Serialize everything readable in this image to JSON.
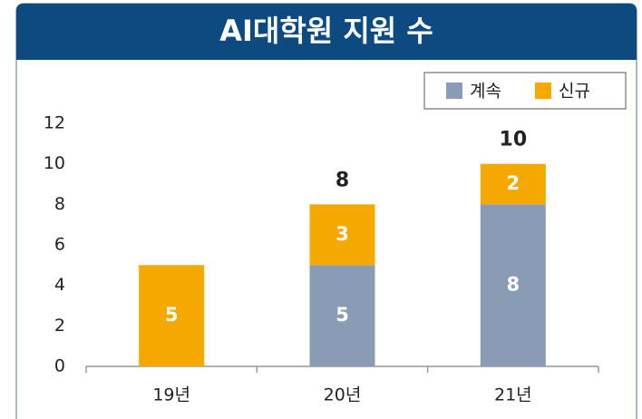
{
  "chart_data": {
    "type": "stacked_bar",
    "title": "AI대학원 지원 수",
    "categories": [
      "19년",
      "20년",
      "21년"
    ],
    "series": [
      {
        "name": "계속",
        "color": "#8a9bb5",
        "values": [
          null,
          5,
          8
        ]
      },
      {
        "name": "신규",
        "color": "#f5a800",
        "values": [
          5,
          3,
          2
        ]
      }
    ],
    "totals": [
      null,
      8,
      10
    ],
    "ylim": [
      0,
      12
    ],
    "yticks": [
      0,
      2,
      4,
      6,
      8,
      10,
      12
    ],
    "grid": false
  }
}
